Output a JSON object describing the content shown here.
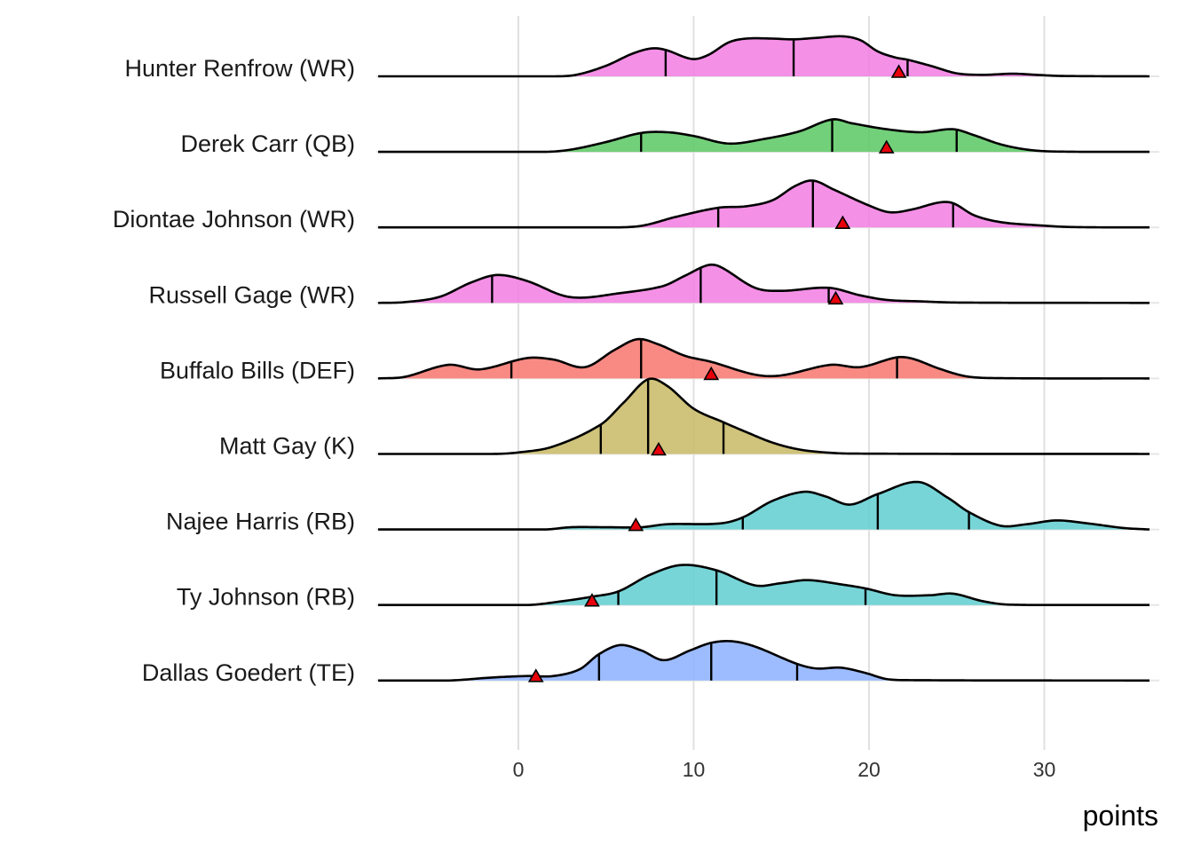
{
  "chart_data": {
    "type": "ridgeline",
    "title": "",
    "xlabel": "points",
    "ylabel": "",
    "xlim": [
      -8,
      36
    ],
    "x_ticks": [
      0,
      10,
      20,
      30
    ],
    "x_tick_labels": [
      "0",
      "10",
      "20",
      "30"
    ],
    "grid": true,
    "legend": "none",
    "marker": "red-triangle",
    "marker_color": "#E8000B",
    "series": [
      {
        "name": "Hunter Renfrow (WR)",
        "color": "#F37DE3",
        "quantiles": [
          8.4,
          15.7,
          22.2
        ],
        "marker_value": 21.7,
        "density": [
          [
            -8,
            0
          ],
          [
            2,
            0
          ],
          [
            3.3,
            0.02
          ],
          [
            5,
            0.14
          ],
          [
            6.5,
            0.3
          ],
          [
            7.6,
            0.37
          ],
          [
            8.4,
            0.35
          ],
          [
            9.9,
            0.23
          ],
          [
            10.8,
            0.28
          ],
          [
            12,
            0.45
          ],
          [
            13,
            0.5
          ],
          [
            14.5,
            0.5
          ],
          [
            15.7,
            0.49
          ],
          [
            17,
            0.51
          ],
          [
            18.5,
            0.53
          ],
          [
            19.5,
            0.48
          ],
          [
            20.5,
            0.33
          ],
          [
            21.5,
            0.25
          ],
          [
            22.2,
            0.22
          ],
          [
            23.5,
            0.14
          ],
          [
            25,
            0.04
          ],
          [
            26.5,
            0.02
          ],
          [
            28.2,
            0.035
          ],
          [
            29.5,
            0.02
          ],
          [
            31,
            0.005
          ],
          [
            36,
            0
          ]
        ]
      },
      {
        "name": "Derek Carr (QB)",
        "color": "#5BC863",
        "quantiles": [
          7.0,
          17.9,
          25.0
        ],
        "marker_value": 21.0,
        "density": [
          [
            -8,
            0
          ],
          [
            1.5,
            0
          ],
          [
            3,
            0.03
          ],
          [
            5,
            0.13
          ],
          [
            7,
            0.25
          ],
          [
            8.5,
            0.26
          ],
          [
            10,
            0.21
          ],
          [
            12,
            0.11
          ],
          [
            14,
            0.17
          ],
          [
            16,
            0.27
          ],
          [
            17.9,
            0.43
          ],
          [
            19,
            0.38
          ],
          [
            21,
            0.3
          ],
          [
            23,
            0.26
          ],
          [
            24.8,
            0.3
          ],
          [
            26,
            0.22
          ],
          [
            27.5,
            0.1
          ],
          [
            29,
            0.03
          ],
          [
            30.5,
            0.005
          ],
          [
            36,
            0
          ]
        ]
      },
      {
        "name": "Diontae Johnson (WR)",
        "color": "#F37DE3",
        "quantiles": [
          11.4,
          16.8,
          24.8
        ],
        "marker_value": 18.5,
        "density": [
          [
            -8,
            0
          ],
          [
            5,
            0
          ],
          [
            7,
            0.02
          ],
          [
            9,
            0.14
          ],
          [
            11.4,
            0.26
          ],
          [
            13,
            0.28
          ],
          [
            14.5,
            0.36
          ],
          [
            15.8,
            0.55
          ],
          [
            16.8,
            0.62
          ],
          [
            18,
            0.5
          ],
          [
            20,
            0.29
          ],
          [
            21.2,
            0.2
          ],
          [
            22.5,
            0.24
          ],
          [
            24,
            0.33
          ],
          [
            24.8,
            0.32
          ],
          [
            26,
            0.16
          ],
          [
            27.5,
            0.07
          ],
          [
            29.5,
            0.03
          ],
          [
            31.5,
            0.005
          ],
          [
            36,
            0
          ]
        ]
      },
      {
        "name": "Russell Gage (WR)",
        "color": "#F37DE3",
        "quantiles": [
          -1.5,
          10.4,
          17.7
        ],
        "marker_value": 18.1,
        "density": [
          [
            -8,
            0
          ],
          [
            -6.5,
            0.01
          ],
          [
            -4.5,
            0.08
          ],
          [
            -2.7,
            0.27
          ],
          [
            -1.2,
            0.37
          ],
          [
            0.5,
            0.29
          ],
          [
            2.5,
            0.1
          ],
          [
            3.7,
            0.07
          ],
          [
            5.5,
            0.12
          ],
          [
            8.2,
            0.22
          ],
          [
            9.5,
            0.36
          ],
          [
            10.8,
            0.5
          ],
          [
            11.5,
            0.48
          ],
          [
            13.5,
            0.2
          ],
          [
            15,
            0.16
          ],
          [
            17.7,
            0.2
          ],
          [
            19.5,
            0.1
          ],
          [
            21,
            0.04
          ],
          [
            23,
            0.02
          ],
          [
            25,
            0.005
          ],
          [
            36,
            0
          ]
        ]
      },
      {
        "name": "Buffalo Bills (DEF)",
        "color": "#F8766D",
        "quantiles": [
          -0.4,
          7.0,
          21.6
        ],
        "marker_value": 11.0,
        "density": [
          [
            -8,
            0
          ],
          [
            -6.5,
            0.02
          ],
          [
            -4,
            0.18
          ],
          [
            -2.2,
            0.12
          ],
          [
            0.5,
            0.27
          ],
          [
            2,
            0.25
          ],
          [
            3.8,
            0.15
          ],
          [
            5.5,
            0.38
          ],
          [
            6.8,
            0.52
          ],
          [
            8,
            0.45
          ],
          [
            9.5,
            0.3
          ],
          [
            11,
            0.22
          ],
          [
            13.5,
            0.05
          ],
          [
            15,
            0.04
          ],
          [
            17.8,
            0.18
          ],
          [
            19.5,
            0.15
          ],
          [
            21.6,
            0.28
          ],
          [
            22.5,
            0.26
          ],
          [
            24,
            0.13
          ],
          [
            25.5,
            0.03
          ],
          [
            27,
            0.005
          ],
          [
            36,
            0
          ]
        ]
      },
      {
        "name": "Matt Gay (K)",
        "color": "#C8B864",
        "quantiles": [
          4.7,
          7.4,
          11.7
        ],
        "marker_value": 8.0,
        "density": [
          [
            -8,
            0
          ],
          [
            -1.5,
            0
          ],
          [
            0,
            0.02
          ],
          [
            2,
            0.1
          ],
          [
            4.7,
            0.39
          ],
          [
            6,
            0.68
          ],
          [
            7.4,
            0.99
          ],
          [
            8.5,
            0.9
          ],
          [
            10,
            0.6
          ],
          [
            11.7,
            0.42
          ],
          [
            13,
            0.29
          ],
          [
            14.5,
            0.15
          ],
          [
            16,
            0.06
          ],
          [
            17.5,
            0.02
          ],
          [
            19,
            0.005
          ],
          [
            36,
            0
          ]
        ]
      },
      {
        "name": "Najee Harris (RB)",
        "color": "#5FCED0",
        "quantiles": [
          12.8,
          20.5,
          25.7
        ],
        "marker_value": 6.7,
        "density": [
          [
            -8,
            0
          ],
          [
            1.5,
            0
          ],
          [
            3,
            0.03
          ],
          [
            5,
            0.03
          ],
          [
            7,
            0.03
          ],
          [
            8.5,
            0.07
          ],
          [
            11.5,
            0.08
          ],
          [
            12.8,
            0.16
          ],
          [
            14.5,
            0.38
          ],
          [
            16.3,
            0.5
          ],
          [
            17.5,
            0.44
          ],
          [
            18.9,
            0.33
          ],
          [
            20.5,
            0.47
          ],
          [
            22.8,
            0.63
          ],
          [
            24.5,
            0.42
          ],
          [
            25.7,
            0.23
          ],
          [
            27.5,
            0.05
          ],
          [
            29,
            0.07
          ],
          [
            30.7,
            0.12
          ],
          [
            32.5,
            0.08
          ],
          [
            34.5,
            0.02
          ],
          [
            36,
            0
          ]
        ]
      },
      {
        "name": "Ty Johnson (RB)",
        "color": "#5FCED0",
        "quantiles": [
          5.7,
          11.3,
          19.8
        ],
        "marker_value": 4.2,
        "density": [
          [
            -8,
            0
          ],
          [
            0.5,
            0
          ],
          [
            2.5,
            0.05
          ],
          [
            4.2,
            0.11
          ],
          [
            5.7,
            0.18
          ],
          [
            7.5,
            0.4
          ],
          [
            9.3,
            0.53
          ],
          [
            11.3,
            0.46
          ],
          [
            13.5,
            0.26
          ],
          [
            15,
            0.29
          ],
          [
            16.5,
            0.33
          ],
          [
            18.5,
            0.27
          ],
          [
            19.8,
            0.22
          ],
          [
            21.5,
            0.13
          ],
          [
            23.5,
            0.13
          ],
          [
            24.8,
            0.15
          ],
          [
            26.5,
            0.05
          ],
          [
            28,
            0.005
          ],
          [
            36,
            0
          ]
        ]
      },
      {
        "name": "Dallas Goedert (TE)",
        "color": "#8CB0FF",
        "quantiles": [
          4.6,
          11.0,
          15.9
        ],
        "marker_value": 1.0,
        "density": [
          [
            -8,
            0
          ],
          [
            -4,
            0
          ],
          [
            -1.5,
            0.04
          ],
          [
            0.5,
            0.06
          ],
          [
            2,
            0.06
          ],
          [
            3.5,
            0.15
          ],
          [
            4.6,
            0.35
          ],
          [
            5.8,
            0.47
          ],
          [
            7,
            0.4
          ],
          [
            8.3,
            0.27
          ],
          [
            9.8,
            0.4
          ],
          [
            11,
            0.5
          ],
          [
            12.2,
            0.52
          ],
          [
            13.5,
            0.45
          ],
          [
            15.9,
            0.22
          ],
          [
            17,
            0.16
          ],
          [
            18.4,
            0.17
          ],
          [
            19.8,
            0.1
          ],
          [
            21,
            0.02
          ],
          [
            22.5,
            0.005
          ],
          [
            36,
            0
          ]
        ]
      }
    ]
  }
}
